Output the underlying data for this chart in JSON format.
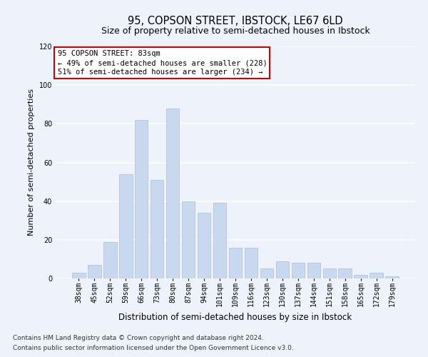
{
  "title": "95, COPSON STREET, IBSTOCK, LE67 6LD",
  "subtitle": "Size of property relative to semi-detached houses in Ibstock",
  "xlabel": "Distribution of semi-detached houses by size in Ibstock",
  "ylabel": "Number of semi-detached properties",
  "footnote1": "Contains HM Land Registry data © Crown copyright and database right 2024.",
  "footnote2": "Contains public sector information licensed under the Open Government Licence v3.0.",
  "bar_labels": [
    "38sqm",
    "45sqm",
    "52sqm",
    "59sqm",
    "66sqm",
    "73sqm",
    "80sqm",
    "87sqm",
    "94sqm",
    "101sqm",
    "109sqm",
    "116sqm",
    "123sqm",
    "130sqm",
    "137sqm",
    "144sqm",
    "151sqm",
    "158sqm",
    "165sqm",
    "172sqm",
    "179sqm"
  ],
  "bar_values": [
    3,
    7,
    19,
    54,
    82,
    51,
    88,
    40,
    34,
    39,
    16,
    16,
    5,
    9,
    8,
    8,
    5,
    5,
    2,
    3,
    1
  ],
  "bar_color": "#c8d8ee",
  "bar_edge_color": "#a8c0de",
  "annotation_box_text": "95 COPSON STREET: 83sqm\n← 49% of semi-detached houses are smaller (228)\n51% of semi-detached houses are larger (234) →",
  "annotation_box_color": "#ffffff",
  "annotation_box_edge_color": "#cc0000",
  "ylim": [
    0,
    120
  ],
  "yticks": [
    0,
    20,
    40,
    60,
    80,
    100,
    120
  ],
  "background_color": "#eef2fa",
  "plot_bg_color": "#eef2fa",
  "grid_color": "#ffffff",
  "title_fontsize": 10.5,
  "subtitle_fontsize": 9,
  "xlabel_fontsize": 8.5,
  "ylabel_fontsize": 8,
  "tick_fontsize": 7,
  "annotation_fontsize": 7.5,
  "footnote_fontsize": 6.5
}
